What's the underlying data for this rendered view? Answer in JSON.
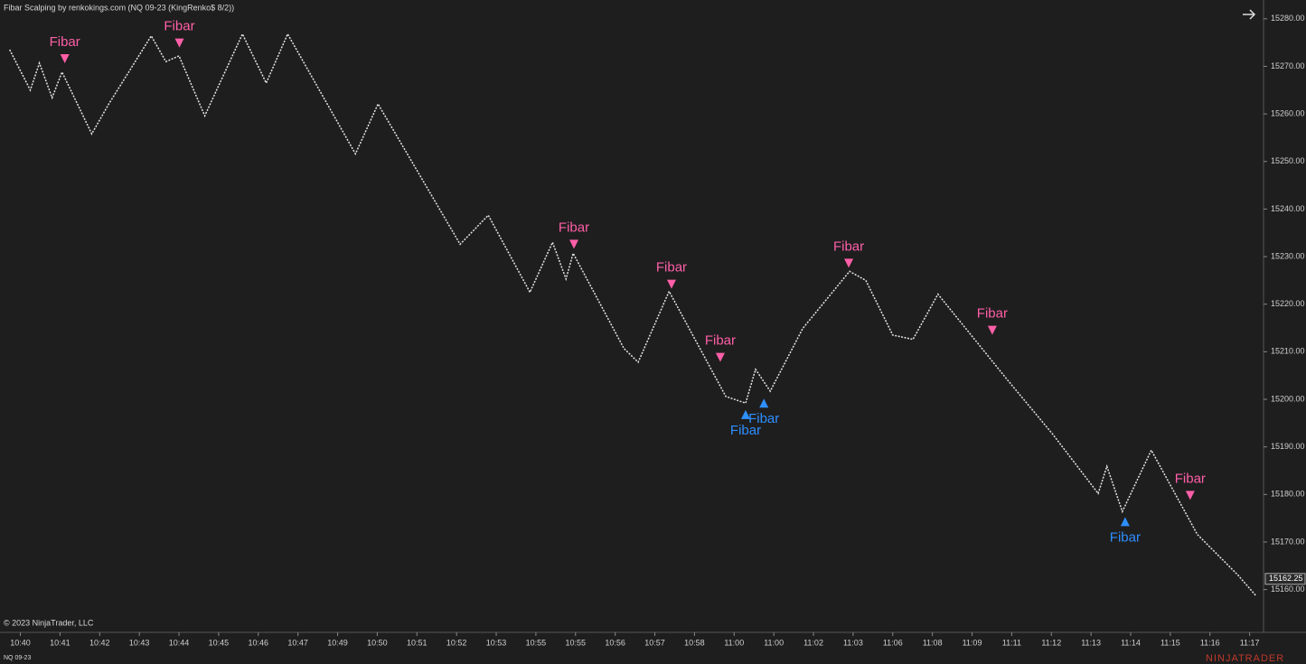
{
  "chart_data": {
    "type": "line",
    "title": "Fibar Scalping by renkokings.com (NQ 09-23 (KingRenko$ 8/2))",
    "copyright": "© 2023 NinjaTrader, LLC",
    "instrument": "NQ 09-23",
    "logo": "NINJATRADER",
    "x": [
      -0.27,
      0.25,
      0.48,
      0.8,
      1.05,
      1.8,
      2.23,
      3.3,
      3.67,
      4.0,
      4.65,
      5.6,
      6.2,
      6.74,
      8.45,
      9.02,
      11.09,
      11.8,
      12.85,
      13.42,
      13.76,
      13.94,
      15.22,
      15.58,
      16.36,
      17.79,
      18.29,
      18.54,
      18.91,
      19.73,
      20.91,
      21.32,
      22.0,
      22.51,
      23.14,
      24.9,
      26.04,
      27.18,
      27.4,
      27.79,
      28.52,
      29.68,
      30.71,
      31.16
    ],
    "series": [
      {
        "name": "NQ 09-23",
        "color": "#e6e6e6",
        "values": [
          15273.5,
          15265,
          15270.7,
          15263.4,
          15268.8,
          15255.8,
          15262.1,
          15276.4,
          15271,
          15272.2,
          15259.6,
          15276.8,
          15266.5,
          15276.8,
          15251.6,
          15262.1,
          15232.6,
          15238.7,
          15222.5,
          15233,
          15225.3,
          15230.7,
          15210.7,
          15207.8,
          15222.7,
          15200.6,
          15199.2,
          15206.3,
          15201.7,
          15214.9,
          15226.9,
          15225,
          15213.5,
          15212.6,
          15222.1,
          15204,
          15192.6,
          15180.2,
          15185.9,
          15176.4,
          15189.3,
          15171.6,
          15163,
          15158.7
        ]
      }
    ],
    "annotations": [
      {
        "text": "Fibar",
        "direction": "down",
        "color": "#ff5fa8",
        "x": 1.12,
        "y": 15271.6
      },
      {
        "text": "Fibar",
        "direction": "down",
        "color": "#ff5fa8",
        "x": 4.01,
        "y": 15274.9
      },
      {
        "text": "Fibar",
        "direction": "down",
        "color": "#ff5fa8",
        "x": 13.96,
        "y": 15232.6
      },
      {
        "text": "Fibar",
        "direction": "down",
        "color": "#ff5fa8",
        "x": 16.42,
        "y": 15224.2
      },
      {
        "text": "Fibar",
        "direction": "down",
        "color": "#ff5fa8",
        "x": 17.65,
        "y": 15208.8
      },
      {
        "text": "Fibar",
        "direction": "up",
        "color": "#2e8fff",
        "x": 18.29,
        "y": 15196.8
      },
      {
        "text": "Fibar",
        "direction": "up",
        "color": "#2e8fff",
        "x": 18.75,
        "y": 15199.2
      },
      {
        "text": "Fibar",
        "direction": "down",
        "color": "#ff5fa8",
        "x": 20.89,
        "y": 15228.6
      },
      {
        "text": "Fibar",
        "direction": "down",
        "color": "#ff5fa8",
        "x": 24.51,
        "y": 15214.5
      },
      {
        "text": "Fibar",
        "direction": "up",
        "color": "#2e8fff",
        "x": 27.86,
        "y": 15174.3
      },
      {
        "text": "Fibar",
        "direction": "down",
        "color": "#ff5fa8",
        "x": 29.5,
        "y": 15179.8
      }
    ],
    "last_price": 15162.25,
    "xlim": [
      -0.4,
      31.35
    ],
    "xticks": [
      {
        "value": 0,
        "label": "10:40"
      },
      {
        "value": 1,
        "label": "10:41"
      },
      {
        "value": 2,
        "label": "10:42"
      },
      {
        "value": 3,
        "label": "10:43"
      },
      {
        "value": 4,
        "label": "10:44"
      },
      {
        "value": 5,
        "label": "10:45"
      },
      {
        "value": 6,
        "label": "10:46"
      },
      {
        "value": 7,
        "label": "10:47"
      },
      {
        "value": 8,
        "label": "10:49"
      },
      {
        "value": 9,
        "label": "10:50"
      },
      {
        "value": 10,
        "label": "10:51"
      },
      {
        "value": 11,
        "label": "10:52"
      },
      {
        "value": 12,
        "label": "10:53"
      },
      {
        "value": 13,
        "label": "10:55"
      },
      {
        "value": 14,
        "label": "10:55"
      },
      {
        "value": 15,
        "label": "10:56"
      },
      {
        "value": 16,
        "label": "10:57"
      },
      {
        "value": 17,
        "label": "10:58"
      },
      {
        "value": 18,
        "label": "11:00"
      },
      {
        "value": 19,
        "label": "11:00"
      },
      {
        "value": 20,
        "label": "11:02"
      },
      {
        "value": 21,
        "label": "11:03"
      },
      {
        "value": 22,
        "label": "11:06"
      },
      {
        "value": 23,
        "label": "11:08"
      },
      {
        "value": 24,
        "label": "11:09"
      },
      {
        "value": 25,
        "label": "11:11"
      },
      {
        "value": 26,
        "label": "11:12"
      },
      {
        "value": 27,
        "label": "11:13"
      },
      {
        "value": 28,
        "label": "11:14"
      },
      {
        "value": 29,
        "label": "11:15"
      },
      {
        "value": 30,
        "label": "11:16"
      },
      {
        "value": 31,
        "label": "11:17"
      }
    ],
    "ylim": [
      15151,
      15283
    ],
    "yticks": [
      {
        "value": 15160,
        "label": "15160.00"
      },
      {
        "value": 15170,
        "label": "15170.00"
      },
      {
        "value": 15180,
        "label": "15180.00"
      },
      {
        "value": 15190,
        "label": "15190.00"
      },
      {
        "value": 15200,
        "label": "15200.00"
      },
      {
        "value": 15210,
        "label": "15210.00"
      },
      {
        "value": 15220,
        "label": "15220.00"
      },
      {
        "value": 15230,
        "label": "15230.00"
      },
      {
        "value": 15240,
        "label": "15240.00"
      },
      {
        "value": 15250,
        "label": "15250.00"
      },
      {
        "value": 15260,
        "label": "15260.00"
      },
      {
        "value": 15270,
        "label": "15270.00"
      },
      {
        "value": 15280,
        "label": "15280.00"
      }
    ],
    "grid": false
  }
}
